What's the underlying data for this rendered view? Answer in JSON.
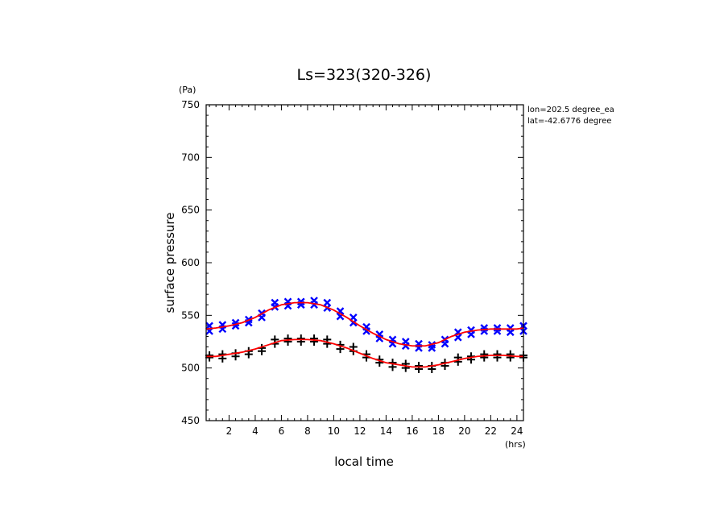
{
  "chart_data": {
    "type": "scatter",
    "title": "Ls=323(320-326)",
    "xlabel": "local time",
    "ylabel": "surface pressure",
    "x_unit": "(hrs)",
    "y_unit": "(Pa)",
    "xlim": [
      0.25,
      24.5
    ],
    "ylim": [
      450,
      750
    ],
    "xticks": [
      2,
      4,
      6,
      8,
      10,
      12,
      14,
      16,
      18,
      20,
      22,
      24
    ],
    "yticks": [
      450,
      500,
      550,
      600,
      650,
      700,
      750
    ],
    "annotations": [
      "lon=202.5 degree_ea",
      "lat=-42.6776 degree"
    ],
    "grid": false,
    "series": [
      {
        "color": "#0000ff",
        "marker": "x",
        "x": [
          0.5,
          0.5,
          1.5,
          1.5,
          2.5,
          2.5,
          3.5,
          3.5,
          4.5,
          4.5,
          5.5,
          5.5,
          6.5,
          6.5,
          7.5,
          7.5,
          8.5,
          8.5,
          9.5,
          9.5,
          10.5,
          10.5,
          11.5,
          11.5,
          12.5,
          12.5,
          13.5,
          13.5,
          14.5,
          14.5,
          15.5,
          15.5,
          16.5,
          16.5,
          17.5,
          17.5,
          18.5,
          18.5,
          19.5,
          19.5,
          20.5,
          20.5,
          21.5,
          21.5,
          22.5,
          22.5,
          23.5,
          23.5,
          24.5,
          24.5
        ],
        "y": [
          540,
          535,
          541,
          537,
          543,
          540,
          546,
          543,
          552,
          548,
          562,
          558,
          563,
          559,
          563,
          560,
          564,
          560,
          562,
          557,
          554,
          549,
          548,
          543,
          539,
          535,
          532,
          528,
          527,
          523,
          525,
          521,
          523,
          519,
          522,
          519,
          527,
          523,
          534,
          529,
          536,
          532,
          538,
          535,
          538,
          535,
          538,
          534,
          540,
          535
        ]
      },
      {
        "color": "#000000",
        "marker": "+",
        "x": [
          0.5,
          0.5,
          1.5,
          1.5,
          2.5,
          2.5,
          3.5,
          3.5,
          4.5,
          4.5,
          5.5,
          5.5,
          6.5,
          6.5,
          7.5,
          7.5,
          8.5,
          8.5,
          9.5,
          9.5,
          10.5,
          10.5,
          11.5,
          11.5,
          12.5,
          12.5,
          13.5,
          13.5,
          14.5,
          14.5,
          15.5,
          15.5,
          16.5,
          16.5,
          17.5,
          17.5,
          18.5,
          18.5,
          19.5,
          19.5,
          20.5,
          20.5,
          21.5,
          21.5,
          22.5,
          22.5,
          23.5,
          23.5,
          24.5,
          24.5
        ],
        "y": [
          512,
          510,
          513,
          509,
          514,
          511,
          516,
          513,
          519,
          516,
          527,
          523,
          528,
          525,
          528,
          525,
          528,
          525,
          527,
          523,
          522,
          518,
          520,
          516,
          513,
          510,
          508,
          505,
          505,
          501,
          504,
          500,
          502,
          499,
          502,
          499,
          505,
          502,
          510,
          506,
          511,
          508,
          513,
          510,
          513,
          510,
          513,
          510,
          512,
          510
        ]
      },
      {
        "color": "#ff0000",
        "marker": "line",
        "x": [
          0.25,
          1,
          2,
          3,
          4,
          5,
          6,
          7,
          8,
          9,
          10,
          11,
          12,
          13,
          14,
          15,
          16,
          17,
          18,
          19,
          20,
          21,
          22,
          23,
          24,
          24.5
        ],
        "y": [
          537,
          538,
          540,
          543,
          548,
          555,
          560,
          562,
          562,
          560,
          555,
          548,
          540,
          533,
          527,
          523,
          521,
          521,
          524,
          530,
          534,
          536,
          537,
          537,
          537,
          538
        ]
      },
      {
        "color": "#ff0000",
        "marker": "line",
        "x": [
          0.25,
          1,
          2,
          3,
          4,
          5,
          6,
          7,
          8,
          9,
          10,
          11,
          12,
          13,
          14,
          15,
          16,
          17,
          18,
          19,
          20,
          21,
          22,
          23,
          24,
          24.5
        ],
        "y": [
          511,
          511,
          513,
          515,
          518,
          522,
          526,
          527,
          527,
          526,
          523,
          519,
          514,
          509,
          505,
          503,
          501,
          501,
          503,
          506,
          509,
          511,
          512,
          512,
          511,
          511
        ]
      }
    ]
  }
}
